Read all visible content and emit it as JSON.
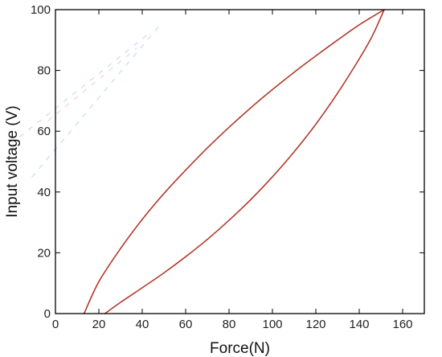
{
  "chart_data": {
    "type": "line",
    "title": "",
    "xlabel": "Force(N)",
    "ylabel": "Input voltage (V)",
    "xlim": [
      0,
      170
    ],
    "ylim": [
      0,
      100
    ],
    "xticks": [
      0,
      20,
      40,
      60,
      80,
      100,
      120,
      140,
      160
    ],
    "yticks": [
      0,
      20,
      40,
      60,
      80,
      100
    ],
    "grid": false,
    "legend": "none",
    "series": [
      {
        "color": "#b23a2a",
        "x": [
          13.2,
          20,
          30,
          40,
          50,
          60,
          70,
          80,
          90,
          100,
          110,
          120,
          130,
          140,
          151.5
        ],
        "y": [
          0,
          10.5,
          21.4,
          31,
          39.5,
          47.2,
          54.5,
          61.3,
          67.7,
          73.7,
          79.4,
          84.8,
          90,
          95,
          100
        ]
      },
      {
        "color": "#b23a2a",
        "x": [
          22.8,
          30,
          40,
          50,
          60,
          70,
          80,
          90,
          100,
          110,
          120,
          130,
          140,
          146,
          151.5
        ],
        "y": [
          0,
          3.7,
          8.5,
          13.4,
          18.7,
          24.4,
          30.7,
          37.5,
          45,
          53.2,
          62.3,
          72.5,
          83.8,
          91.3,
          100
        ]
      }
    ]
  }
}
